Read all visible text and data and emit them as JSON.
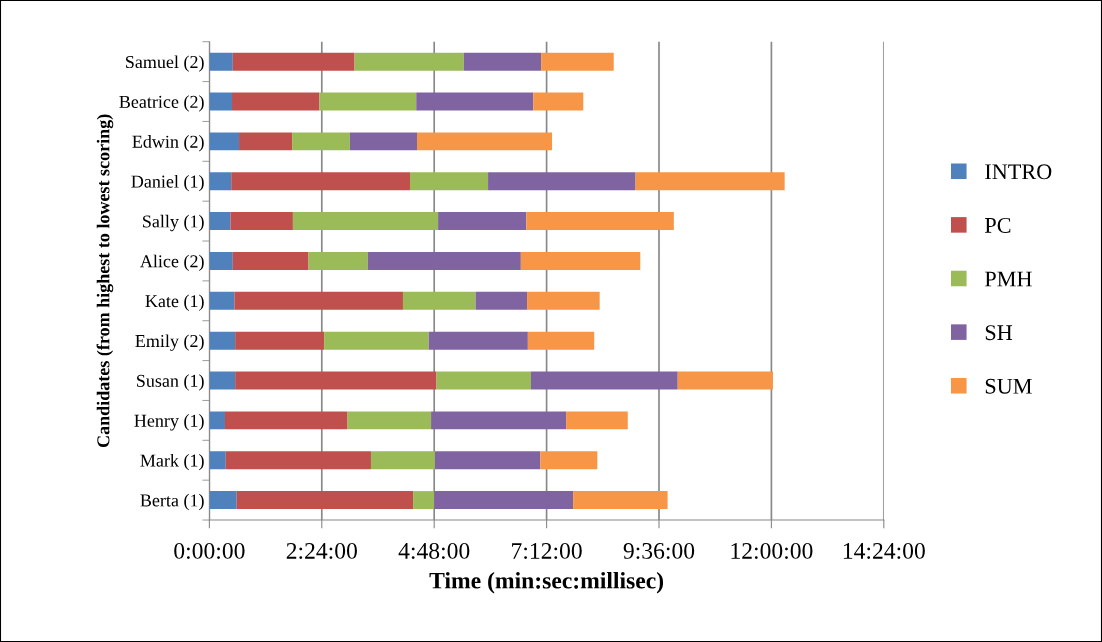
{
  "chart_data": {
    "type": "bar",
    "orientation": "horizontal",
    "stacked": true,
    "xlabel": "Time (min:sec:millisec)",
    "ylabel": "Candidates (from highest to lowest scoring)",
    "categories": [
      "Samuel (2)",
      "Beatrice (2)",
      "Edwin (2)",
      "Daniel (1)",
      "Sally (1)",
      "Alice (2)",
      "Kate (1)",
      "Emily (2)",
      "Susan (1)",
      "Henry (1)",
      "Mark (1)",
      "Berta (1)"
    ],
    "series": [
      {
        "name": "INTRO",
        "color": "#4f81bd",
        "values": [
          30,
          29,
          38,
          28,
          27,
          30,
          32,
          33,
          33,
          20,
          21,
          35
        ]
      },
      {
        "name": "PC",
        "color": "#c0504d",
        "values": [
          156,
          112,
          68,
          229,
          80,
          97,
          216,
          114,
          258,
          157,
          186,
          226
        ]
      },
      {
        "name": "PMH",
        "color": "#9bbb59",
        "values": [
          140,
          124,
          74,
          100,
          186,
          76,
          93,
          134,
          121,
          107,
          82,
          27
        ]
      },
      {
        "name": "SH",
        "color": "#8064a2",
        "values": [
          99,
          150,
          86,
          189,
          113,
          196,
          66,
          127,
          188,
          173,
          135,
          178
        ]
      },
      {
        "name": "SUM",
        "color": "#f79646",
        "values": [
          93,
          64,
          173,
          191,
          189,
          153,
          93,
          85,
          122,
          79,
          73,
          121
        ]
      }
    ],
    "xlim": [
      0,
      864
    ],
    "xticks": [
      {
        "value": 0,
        "label": "0:00:00"
      },
      {
        "value": 144,
        "label": "2:24:00"
      },
      {
        "value": 288,
        "label": "4:48:00"
      },
      {
        "value": 432,
        "label": "7:12:00"
      },
      {
        "value": 576,
        "label": "9:36:00"
      },
      {
        "value": 720,
        "label": "12:00:00"
      },
      {
        "value": 864,
        "label": "14:24:00"
      }
    ],
    "grid": "x",
    "legend": "right"
  }
}
